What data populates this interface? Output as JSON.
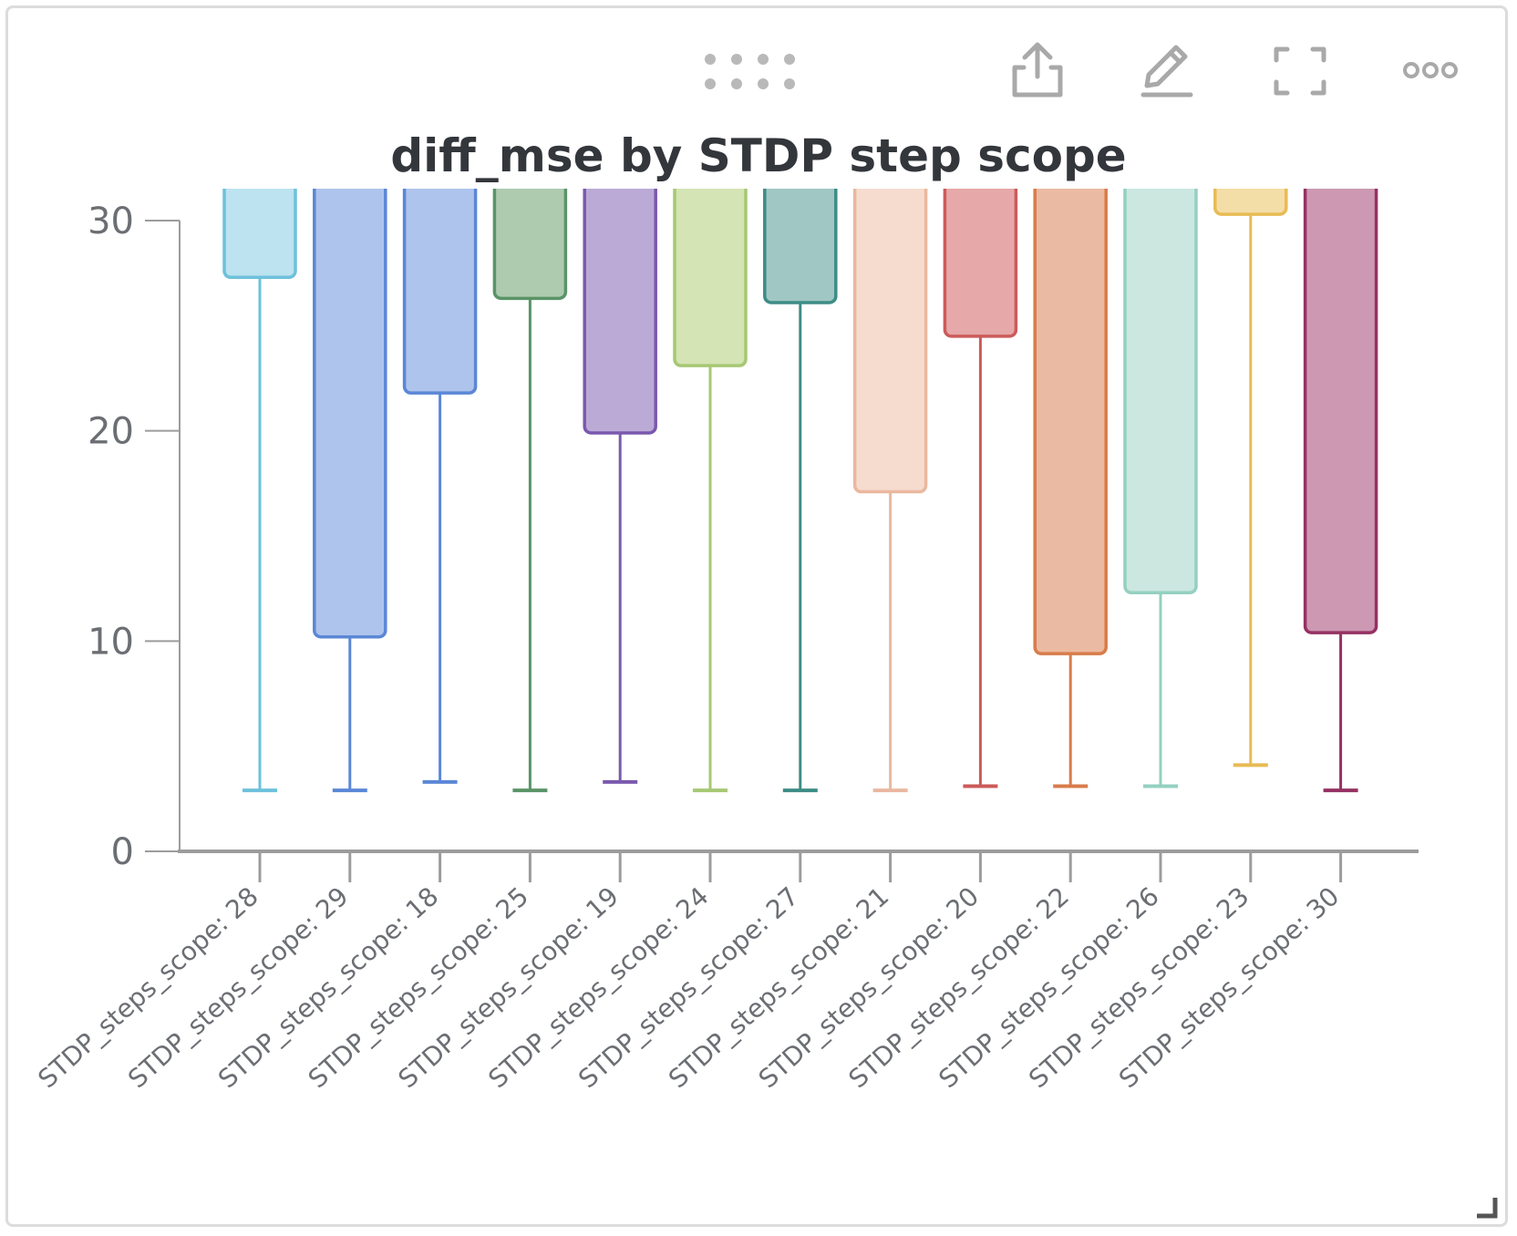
{
  "toolbar": {
    "drag_handle_icon": "drag-handle-icon",
    "export_icon": "export-icon",
    "edit_icon": "pencil-icon",
    "fullscreen_icon": "fullscreen-icon",
    "more_icon": "more-options-icon",
    "resize_icon": "resize-handle-icon"
  },
  "chart_data": {
    "type": "box",
    "title": "diff_mse by STDP step scope",
    "xlabel": "",
    "ylabel": "",
    "ylim": [
      0,
      31.5
    ],
    "yticks": [
      "0",
      "10",
      "20",
      "30"
    ],
    "grid": false,
    "legend": "none",
    "categories": [
      "STDP_steps_scope: 28",
      "STDP_steps_scope: 29",
      "STDP_steps_scope: 18",
      "STDP_steps_scope: 25",
      "STDP_steps_scope: 19",
      "STDP_steps_scope: 24",
      "STDP_steps_scope: 27",
      "STDP_steps_scope: 21",
      "STDP_steps_scope: 20",
      "STDP_steps_scope: 22",
      "STDP_steps_scope: 26",
      "STDP_steps_scope: 23",
      "STDP_steps_scope: 30"
    ],
    "boxes": [
      {
        "whisker_low": 2.9,
        "box_low": 27.3,
        "stroke": "#6ec1dc",
        "fill": "#bce3ef"
      },
      {
        "whisker_low": 2.9,
        "box_low": 10.2,
        "stroke": "#5b87d6",
        "fill": "#afc4ec"
      },
      {
        "whisker_low": 3.3,
        "box_low": 21.8,
        "stroke": "#5b87d6",
        "fill": "#afc4ec"
      },
      {
        "whisker_low": 2.9,
        "box_low": 26.3,
        "stroke": "#5a9467",
        "fill": "#aecbb0"
      },
      {
        "whisker_low": 3.3,
        "box_low": 19.9,
        "stroke": "#7a59ae",
        "fill": "#bcaad6"
      },
      {
        "whisker_low": 2.9,
        "box_low": 23.1,
        "stroke": "#a6c874",
        "fill": "#d4e4b4"
      },
      {
        "whisker_low": 2.9,
        "box_low": 26.1,
        "stroke": "#3e8c86",
        "fill": "#a1c7c4"
      },
      {
        "whisker_low": 2.9,
        "box_low": 17.1,
        "stroke": "#eab89f",
        "fill": "#f5dccf"
      },
      {
        "whisker_low": 3.1,
        "box_low": 24.5,
        "stroke": "#cc5a5a",
        "fill": "#e6a8a8"
      },
      {
        "whisker_low": 3.1,
        "box_low": 9.4,
        "stroke": "#d87c4a",
        "fill": "#ebbaa2"
      },
      {
        "whisker_low": 3.1,
        "box_low": 12.3,
        "stroke": "#94d0c0",
        "fill": "#cbe7e0"
      },
      {
        "whisker_low": 4.1,
        "box_low": 30.3,
        "stroke": "#e8bb55",
        "fill": "#f4dea8"
      },
      {
        "whisker_low": 2.9,
        "box_low": 10.4,
        "stroke": "#953163",
        "fill": "#cc98b2"
      }
    ]
  }
}
